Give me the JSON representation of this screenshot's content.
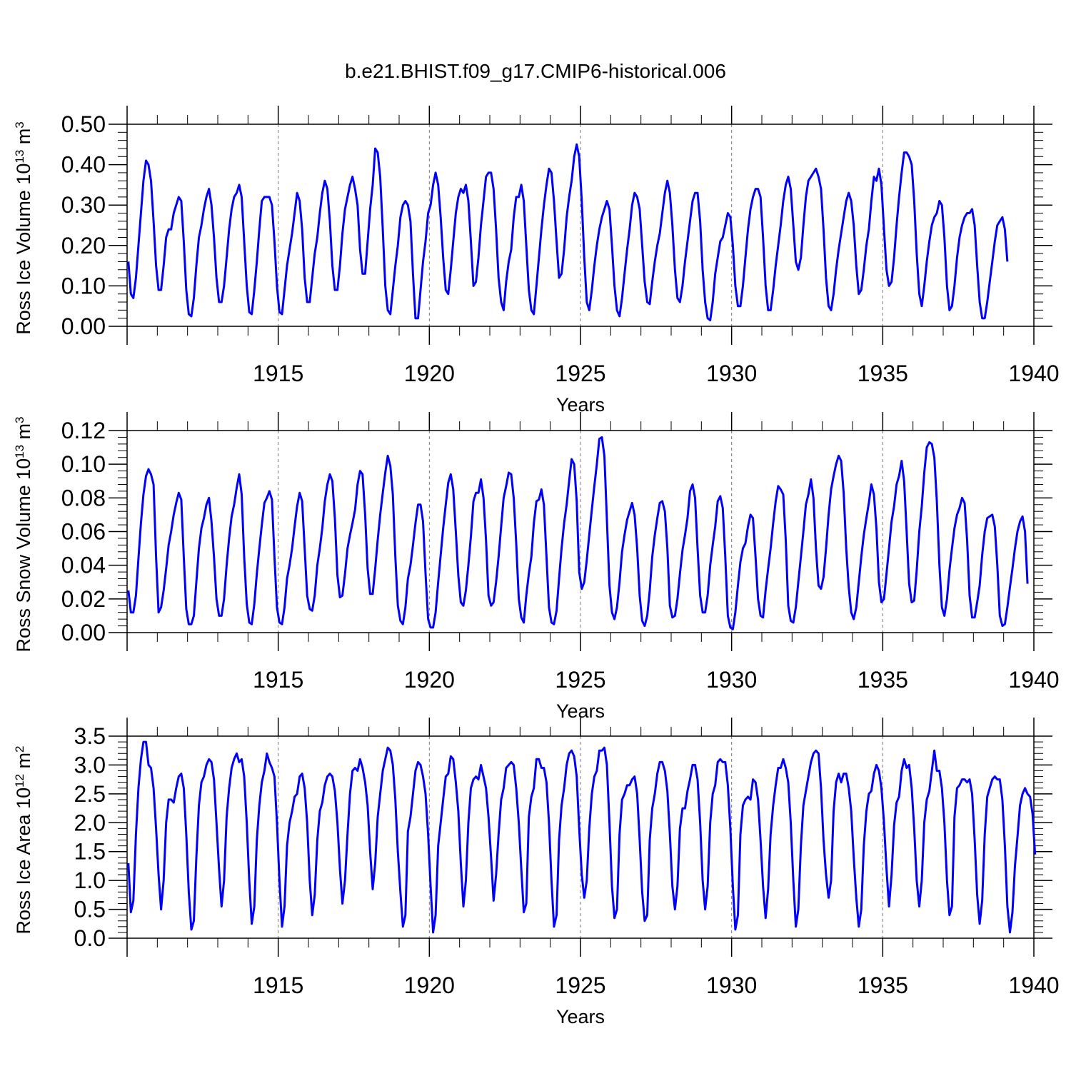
{
  "title": "b.e21.BHIST.f09_g17.CMIP6-historical.006",
  "chart_data": [
    {
      "type": "line",
      "name": "ross-ice-volume",
      "ylabel": {
        "prefix": "Ross Ice Volume 10",
        "exp": "13",
        "unit": " m",
        "unit_exp": "3"
      },
      "xlabel": "Years",
      "xlim": [
        1910,
        1940
      ],
      "ylim": [
        0,
        0.5
      ],
      "yticks": [
        0,
        0.1,
        0.2,
        0.3,
        0.4,
        0.5
      ],
      "ytick_labels": [
        "0.00",
        "0.10",
        "0.20",
        "0.30",
        "0.40",
        "0.50"
      ],
      "xticks": [
        1915,
        1920,
        1925,
        1930,
        1935,
        1940
      ],
      "color": "#0000ff",
      "grid": "dashed vertical lines at major x ticks",
      "x_start": 1910.042,
      "x_step": 0.08333,
      "values": [
        0.16,
        0.08,
        0.07,
        0.12,
        0.2,
        0.28,
        0.36,
        0.41,
        0.4,
        0.36,
        0.26,
        0.15,
        0.09,
        0.09,
        0.15,
        0.22,
        0.24,
        0.24,
        0.28,
        0.3,
        0.32,
        0.31,
        0.21,
        0.09,
        0.03,
        0.025,
        0.07,
        0.15,
        0.22,
        0.25,
        0.29,
        0.32,
        0.34,
        0.3,
        0.22,
        0.12,
        0.06,
        0.06,
        0.1,
        0.17,
        0.24,
        0.29,
        0.32,
        0.33,
        0.35,
        0.32,
        0.21,
        0.1,
        0.035,
        0.03,
        0.09,
        0.16,
        0.24,
        0.31,
        0.32,
        0.32,
        0.32,
        0.3,
        0.21,
        0.1,
        0.035,
        0.03,
        0.09,
        0.15,
        0.19,
        0.23,
        0.28,
        0.33,
        0.31,
        0.24,
        0.12,
        0.06,
        0.06,
        0.12,
        0.18,
        0.22,
        0.28,
        0.33,
        0.36,
        0.34,
        0.26,
        0.15,
        0.09,
        0.09,
        0.15,
        0.23,
        0.29,
        0.32,
        0.35,
        0.37,
        0.34,
        0.3,
        0.19,
        0.13,
        0.13,
        0.21,
        0.29,
        0.35,
        0.44,
        0.43,
        0.37,
        0.24,
        0.1,
        0.04,
        0.03,
        0.09,
        0.15,
        0.2,
        0.27,
        0.3,
        0.31,
        0.3,
        0.26,
        0.13,
        0.02,
        0.02,
        0.09,
        0.16,
        0.21,
        0.28,
        0.3,
        0.35,
        0.38,
        0.35,
        0.27,
        0.17,
        0.09,
        0.08,
        0.14,
        0.21,
        0.28,
        0.32,
        0.34,
        0.33,
        0.35,
        0.31,
        0.21,
        0.1,
        0.11,
        0.17,
        0.25,
        0.31,
        0.37,
        0.38,
        0.38,
        0.34,
        0.24,
        0.12,
        0.06,
        0.04,
        0.11,
        0.16,
        0.19,
        0.27,
        0.32,
        0.32,
        0.35,
        0.31,
        0.2,
        0.09,
        0.04,
        0.03,
        0.1,
        0.17,
        0.24,
        0.3,
        0.35,
        0.39,
        0.38,
        0.31,
        0.21,
        0.12,
        0.13,
        0.19,
        0.27,
        0.32,
        0.36,
        0.42,
        0.45,
        0.42,
        0.31,
        0.17,
        0.06,
        0.04,
        0.09,
        0.15,
        0.2,
        0.24,
        0.27,
        0.29,
        0.31,
        0.29,
        0.2,
        0.1,
        0.04,
        0.025,
        0.07,
        0.13,
        0.19,
        0.24,
        0.3,
        0.33,
        0.32,
        0.29,
        0.2,
        0.11,
        0.06,
        0.055,
        0.11,
        0.16,
        0.2,
        0.23,
        0.28,
        0.33,
        0.36,
        0.33,
        0.25,
        0.14,
        0.07,
        0.06,
        0.1,
        0.16,
        0.21,
        0.26,
        0.31,
        0.33,
        0.33,
        0.26,
        0.14,
        0.06,
        0.02,
        0.015,
        0.06,
        0.13,
        0.17,
        0.21,
        0.22,
        0.25,
        0.28,
        0.27,
        0.2,
        0.1,
        0.05,
        0.05,
        0.1,
        0.17,
        0.24,
        0.29,
        0.32,
        0.34,
        0.34,
        0.32,
        0.22,
        0.1,
        0.04,
        0.04,
        0.09,
        0.15,
        0.2,
        0.25,
        0.31,
        0.35,
        0.37,
        0.34,
        0.25,
        0.16,
        0.14,
        0.17,
        0.25,
        0.32,
        0.36,
        0.37,
        0.38,
        0.39,
        0.37,
        0.34,
        0.24,
        0.12,
        0.05,
        0.04,
        0.08,
        0.14,
        0.19,
        0.23,
        0.27,
        0.31,
        0.33,
        0.31,
        0.25,
        0.15,
        0.08,
        0.09,
        0.14,
        0.2,
        0.24,
        0.31,
        0.37,
        0.36,
        0.39,
        0.35,
        0.24,
        0.14,
        0.1,
        0.11,
        0.17,
        0.25,
        0.32,
        0.38,
        0.43,
        0.43,
        0.42,
        0.4,
        0.31,
        0.18,
        0.08,
        0.05,
        0.1,
        0.16,
        0.21,
        0.25,
        0.27,
        0.28,
        0.31,
        0.3,
        0.22,
        0.1,
        0.04,
        0.05,
        0.1,
        0.17,
        0.22,
        0.25,
        0.27,
        0.28,
        0.28,
        0.29,
        0.25,
        0.15,
        0.06,
        0.02,
        0.02,
        0.06,
        0.11,
        0.16,
        0.21,
        0.25,
        0.26,
        0.27,
        0.24,
        0.16
      ]
    },
    {
      "type": "line",
      "name": "ross-snow-volume",
      "ylabel": {
        "prefix": "Ross Snow Volume 10",
        "exp": "13",
        "unit": " m",
        "unit_exp": "3"
      },
      "xlabel": "Years",
      "xlim": [
        1910,
        1940
      ],
      "ylim": [
        0,
        0.12
      ],
      "yticks": [
        0,
        0.02,
        0.04,
        0.06,
        0.08,
        0.1,
        0.12
      ],
      "ytick_labels": [
        "0.00",
        "0.02",
        "0.04",
        "0.06",
        "0.08",
        "0.10",
        "0.12"
      ],
      "xticks": [
        1915,
        1920,
        1925,
        1930,
        1935,
        1940
      ],
      "color": "#0000ff",
      "grid": "dashed vertical lines at major x ticks",
      "x_start": 1910.042,
      "x_step": 0.08333,
      "values": [
        0.025,
        0.012,
        0.012,
        0.022,
        0.044,
        0.065,
        0.082,
        0.093,
        0.097,
        0.094,
        0.088,
        0.045,
        0.012,
        0.015,
        0.025,
        0.038,
        0.052,
        0.06,
        0.07,
        0.077,
        0.083,
        0.079,
        0.045,
        0.014,
        0.005,
        0.005,
        0.01,
        0.03,
        0.05,
        0.062,
        0.068,
        0.076,
        0.08,
        0.066,
        0.045,
        0.02,
        0.01,
        0.01,
        0.02,
        0.04,
        0.056,
        0.069,
        0.076,
        0.086,
        0.094,
        0.082,
        0.045,
        0.017,
        0.006,
        0.005,
        0.017,
        0.035,
        0.05,
        0.064,
        0.077,
        0.08,
        0.084,
        0.079,
        0.045,
        0.015,
        0.006,
        0.005,
        0.015,
        0.032,
        0.04,
        0.05,
        0.063,
        0.075,
        0.083,
        0.078,
        0.05,
        0.022,
        0.014,
        0.013,
        0.022,
        0.04,
        0.05,
        0.062,
        0.078,
        0.088,
        0.094,
        0.09,
        0.068,
        0.034,
        0.021,
        0.022,
        0.035,
        0.05,
        0.058,
        0.065,
        0.073,
        0.088,
        0.096,
        0.094,
        0.07,
        0.038,
        0.023,
        0.023,
        0.038,
        0.055,
        0.07,
        0.083,
        0.095,
        0.105,
        0.099,
        0.082,
        0.045,
        0.016,
        0.007,
        0.005,
        0.015,
        0.032,
        0.04,
        0.052,
        0.065,
        0.076,
        0.076,
        0.066,
        0.035,
        0.008,
        0.003,
        0.003,
        0.012,
        0.03,
        0.046,
        0.062,
        0.076,
        0.089,
        0.094,
        0.085,
        0.06,
        0.034,
        0.018,
        0.016,
        0.025,
        0.04,
        0.057,
        0.078,
        0.083,
        0.083,
        0.091,
        0.08,
        0.055,
        0.022,
        0.016,
        0.018,
        0.03,
        0.045,
        0.063,
        0.08,
        0.087,
        0.095,
        0.094,
        0.08,
        0.053,
        0.02,
        0.009,
        0.006,
        0.022,
        0.035,
        0.045,
        0.065,
        0.078,
        0.079,
        0.085,
        0.076,
        0.045,
        0.015,
        0.006,
        0.005,
        0.013,
        0.032,
        0.05,
        0.065,
        0.076,
        0.09,
        0.103,
        0.1,
        0.078,
        0.036,
        0.026,
        0.03,
        0.043,
        0.058,
        0.073,
        0.087,
        0.1,
        0.115,
        0.116,
        0.105,
        0.067,
        0.028,
        0.012,
        0.008,
        0.015,
        0.03,
        0.048,
        0.058,
        0.067,
        0.072,
        0.077,
        0.07,
        0.05,
        0.022,
        0.007,
        0.004,
        0.01,
        0.025,
        0.045,
        0.058,
        0.068,
        0.077,
        0.078,
        0.072,
        0.05,
        0.016,
        0.009,
        0.01,
        0.02,
        0.035,
        0.049,
        0.058,
        0.068,
        0.084,
        0.088,
        0.08,
        0.05,
        0.022,
        0.012,
        0.012,
        0.022,
        0.04,
        0.052,
        0.063,
        0.078,
        0.081,
        0.074,
        0.045,
        0.01,
        0.003,
        0.002,
        0.012,
        0.028,
        0.042,
        0.05,
        0.053,
        0.063,
        0.07,
        0.068,
        0.045,
        0.02,
        0.01,
        0.009,
        0.025,
        0.038,
        0.05,
        0.065,
        0.078,
        0.087,
        0.085,
        0.082,
        0.055,
        0.016,
        0.007,
        0.006,
        0.015,
        0.03,
        0.045,
        0.06,
        0.076,
        0.082,
        0.091,
        0.08,
        0.05,
        0.028,
        0.026,
        0.033,
        0.05,
        0.07,
        0.085,
        0.093,
        0.1,
        0.105,
        0.102,
        0.083,
        0.05,
        0.027,
        0.012,
        0.008,
        0.015,
        0.03,
        0.045,
        0.058,
        0.068,
        0.077,
        0.088,
        0.082,
        0.062,
        0.03,
        0.018,
        0.02,
        0.035,
        0.05,
        0.066,
        0.075,
        0.088,
        0.093,
        0.102,
        0.09,
        0.06,
        0.029,
        0.018,
        0.019,
        0.037,
        0.06,
        0.075,
        0.095,
        0.11,
        0.113,
        0.112,
        0.104,
        0.078,
        0.04,
        0.015,
        0.01,
        0.02,
        0.037,
        0.05,
        0.062,
        0.07,
        0.074,
        0.08,
        0.077,
        0.055,
        0.022,
        0.009,
        0.009,
        0.018,
        0.028,
        0.046,
        0.06,
        0.068,
        0.069,
        0.07,
        0.063,
        0.04,
        0.01,
        0.004,
        0.005,
        0.015,
        0.027,
        0.038,
        0.05,
        0.06,
        0.066,
        0.069,
        0.06,
        0.029
      ]
    },
    {
      "type": "line",
      "name": "ross-ice-area",
      "ylabel": {
        "prefix": "Ross Ice Area 10",
        "exp": "12",
        "unit": " m",
        "unit_exp": "2"
      },
      "xlabel": "Years",
      "xlim": [
        1910,
        1940
      ],
      "ylim": [
        0,
        3.5
      ],
      "yticks": [
        0,
        0.5,
        1.0,
        1.5,
        2.0,
        2.5,
        3.0,
        3.5
      ],
      "ytick_labels": [
        "0.0",
        "0.5",
        "1.0",
        "1.5",
        "2.0",
        "2.5",
        "3.0",
        "3.5"
      ],
      "xticks": [
        1915,
        1920,
        1925,
        1930,
        1935,
        1940
      ],
      "color": "#0000ff",
      "grid": "dashed vertical lines at major x ticks",
      "x_start": 1910.042,
      "x_step": 0.08333,
      "values": [
        1.3,
        0.45,
        0.65,
        1.8,
        2.6,
        3.1,
        3.4,
        3.4,
        3.0,
        2.95,
        2.6,
        1.9,
        1.1,
        0.5,
        1.0,
        2.0,
        2.4,
        2.4,
        2.35,
        2.6,
        2.8,
        2.85,
        2.6,
        1.8,
        0.8,
        0.15,
        0.3,
        1.4,
        2.3,
        2.7,
        2.8,
        3.0,
        3.1,
        3.05,
        2.75,
        2.0,
        1.2,
        0.55,
        1.0,
        2.1,
        2.6,
        2.95,
        3.1,
        3.2,
        3.05,
        3.1,
        2.8,
        2.0,
        1.0,
        0.25,
        0.55,
        1.7,
        2.3,
        2.7,
        2.9,
        3.2,
        3.05,
        2.95,
        2.8,
        2.0,
        1.0,
        0.2,
        0.55,
        1.6,
        2.0,
        2.2,
        2.45,
        2.5,
        2.8,
        2.85,
        2.6,
        2.0,
        1.0,
        0.4,
        0.75,
        1.7,
        2.2,
        2.35,
        2.65,
        2.8,
        2.85,
        2.8,
        2.55,
        2.0,
        1.2,
        0.6,
        1.0,
        1.8,
        2.5,
        2.9,
        2.95,
        2.9,
        3.1,
        2.95,
        2.7,
        2.3,
        1.5,
        0.85,
        1.3,
        2.1,
        2.5,
        2.9,
        3.1,
        3.3,
        3.25,
        3.0,
        2.4,
        1.5,
        0.8,
        0.2,
        0.4,
        1.85,
        2.1,
        2.5,
        2.9,
        3.05,
        3.0,
        2.8,
        2.5,
        1.8,
        0.9,
        0.1,
        0.4,
        1.6,
        2.0,
        2.4,
        2.8,
        2.85,
        3.15,
        3.1,
        2.7,
        2.2,
        1.3,
        0.55,
        1.0,
        2.0,
        2.6,
        2.75,
        2.8,
        2.75,
        3.0,
        2.8,
        2.6,
        2.1,
        1.4,
        0.65,
        1.1,
        1.8,
        2.4,
        2.6,
        2.95,
        3.0,
        3.05,
        3.0,
        2.6,
        2.0,
        1.2,
        0.45,
        0.6,
        2.1,
        2.45,
        2.6,
        3.1,
        3.1,
        2.95,
        2.95,
        2.7,
        2.0,
        1.0,
        0.2,
        0.4,
        1.7,
        2.3,
        2.6,
        3.0,
        3.2,
        3.25,
        3.15,
        2.8,
        1.9,
        1.1,
        0.7,
        1.0,
        1.9,
        2.5,
        2.8,
        2.9,
        3.25,
        3.25,
        3.3,
        3.0,
        2.0,
        0.9,
        0.35,
        0.5,
        1.8,
        2.4,
        2.5,
        2.65,
        2.65,
        2.75,
        2.8,
        2.5,
        1.7,
        0.8,
        0.3,
        0.4,
        1.7,
        2.25,
        2.5,
        2.85,
        3.05,
        3.05,
        2.9,
        2.55,
        1.8,
        0.9,
        0.5,
        0.9,
        1.9,
        2.25,
        2.25,
        2.55,
        2.75,
        3.0,
        3.0,
        2.75,
        2.0,
        1.0,
        0.5,
        0.9,
        2.0,
        2.5,
        2.65,
        3.05,
        3.1,
        3.05,
        3.05,
        2.65,
        1.9,
        0.9,
        0.15,
        0.4,
        1.8,
        2.3,
        2.4,
        2.45,
        2.4,
        2.75,
        2.7,
        2.4,
        1.7,
        0.9,
        0.35,
        0.85,
        1.8,
        2.3,
        2.65,
        2.95,
        2.95,
        3.1,
        2.95,
        2.7,
        2.0,
        1.0,
        0.2,
        0.5,
        1.6,
        2.3,
        2.55,
        2.8,
        3.05,
        3.2,
        3.25,
        3.2,
        2.6,
        1.7,
        1.1,
        0.7,
        1.0,
        2.2,
        2.7,
        2.85,
        2.7,
        2.85,
        2.85,
        2.6,
        2.2,
        1.4,
        0.7,
        0.2,
        0.5,
        1.6,
        2.2,
        2.5,
        2.55,
        2.85,
        3.0,
        2.9,
        2.6,
        2.0,
        1.2,
        0.55,
        1.1,
        1.95,
        2.35,
        2.45,
        2.9,
        3.1,
        2.95,
        3.0,
        2.6,
        1.9,
        1.0,
        0.55,
        1.0,
        2.0,
        2.4,
        2.55,
        2.9,
        3.25,
        2.9,
        2.9,
        2.6,
        2.0,
        1.0,
        0.4,
        0.55,
        2.1,
        2.6,
        2.65,
        2.75,
        2.75,
        2.7,
        2.75,
        2.5,
        1.7,
        0.75,
        0.25,
        0.65,
        1.8,
        2.45,
        2.6,
        2.75,
        2.8,
        2.75,
        2.75,
        2.4,
        1.6,
        0.55,
        0.1,
        0.45,
        1.25,
        1.75,
        2.3,
        2.5,
        2.6,
        2.5,
        2.45,
        2.15,
        1.45
      ]
    }
  ]
}
